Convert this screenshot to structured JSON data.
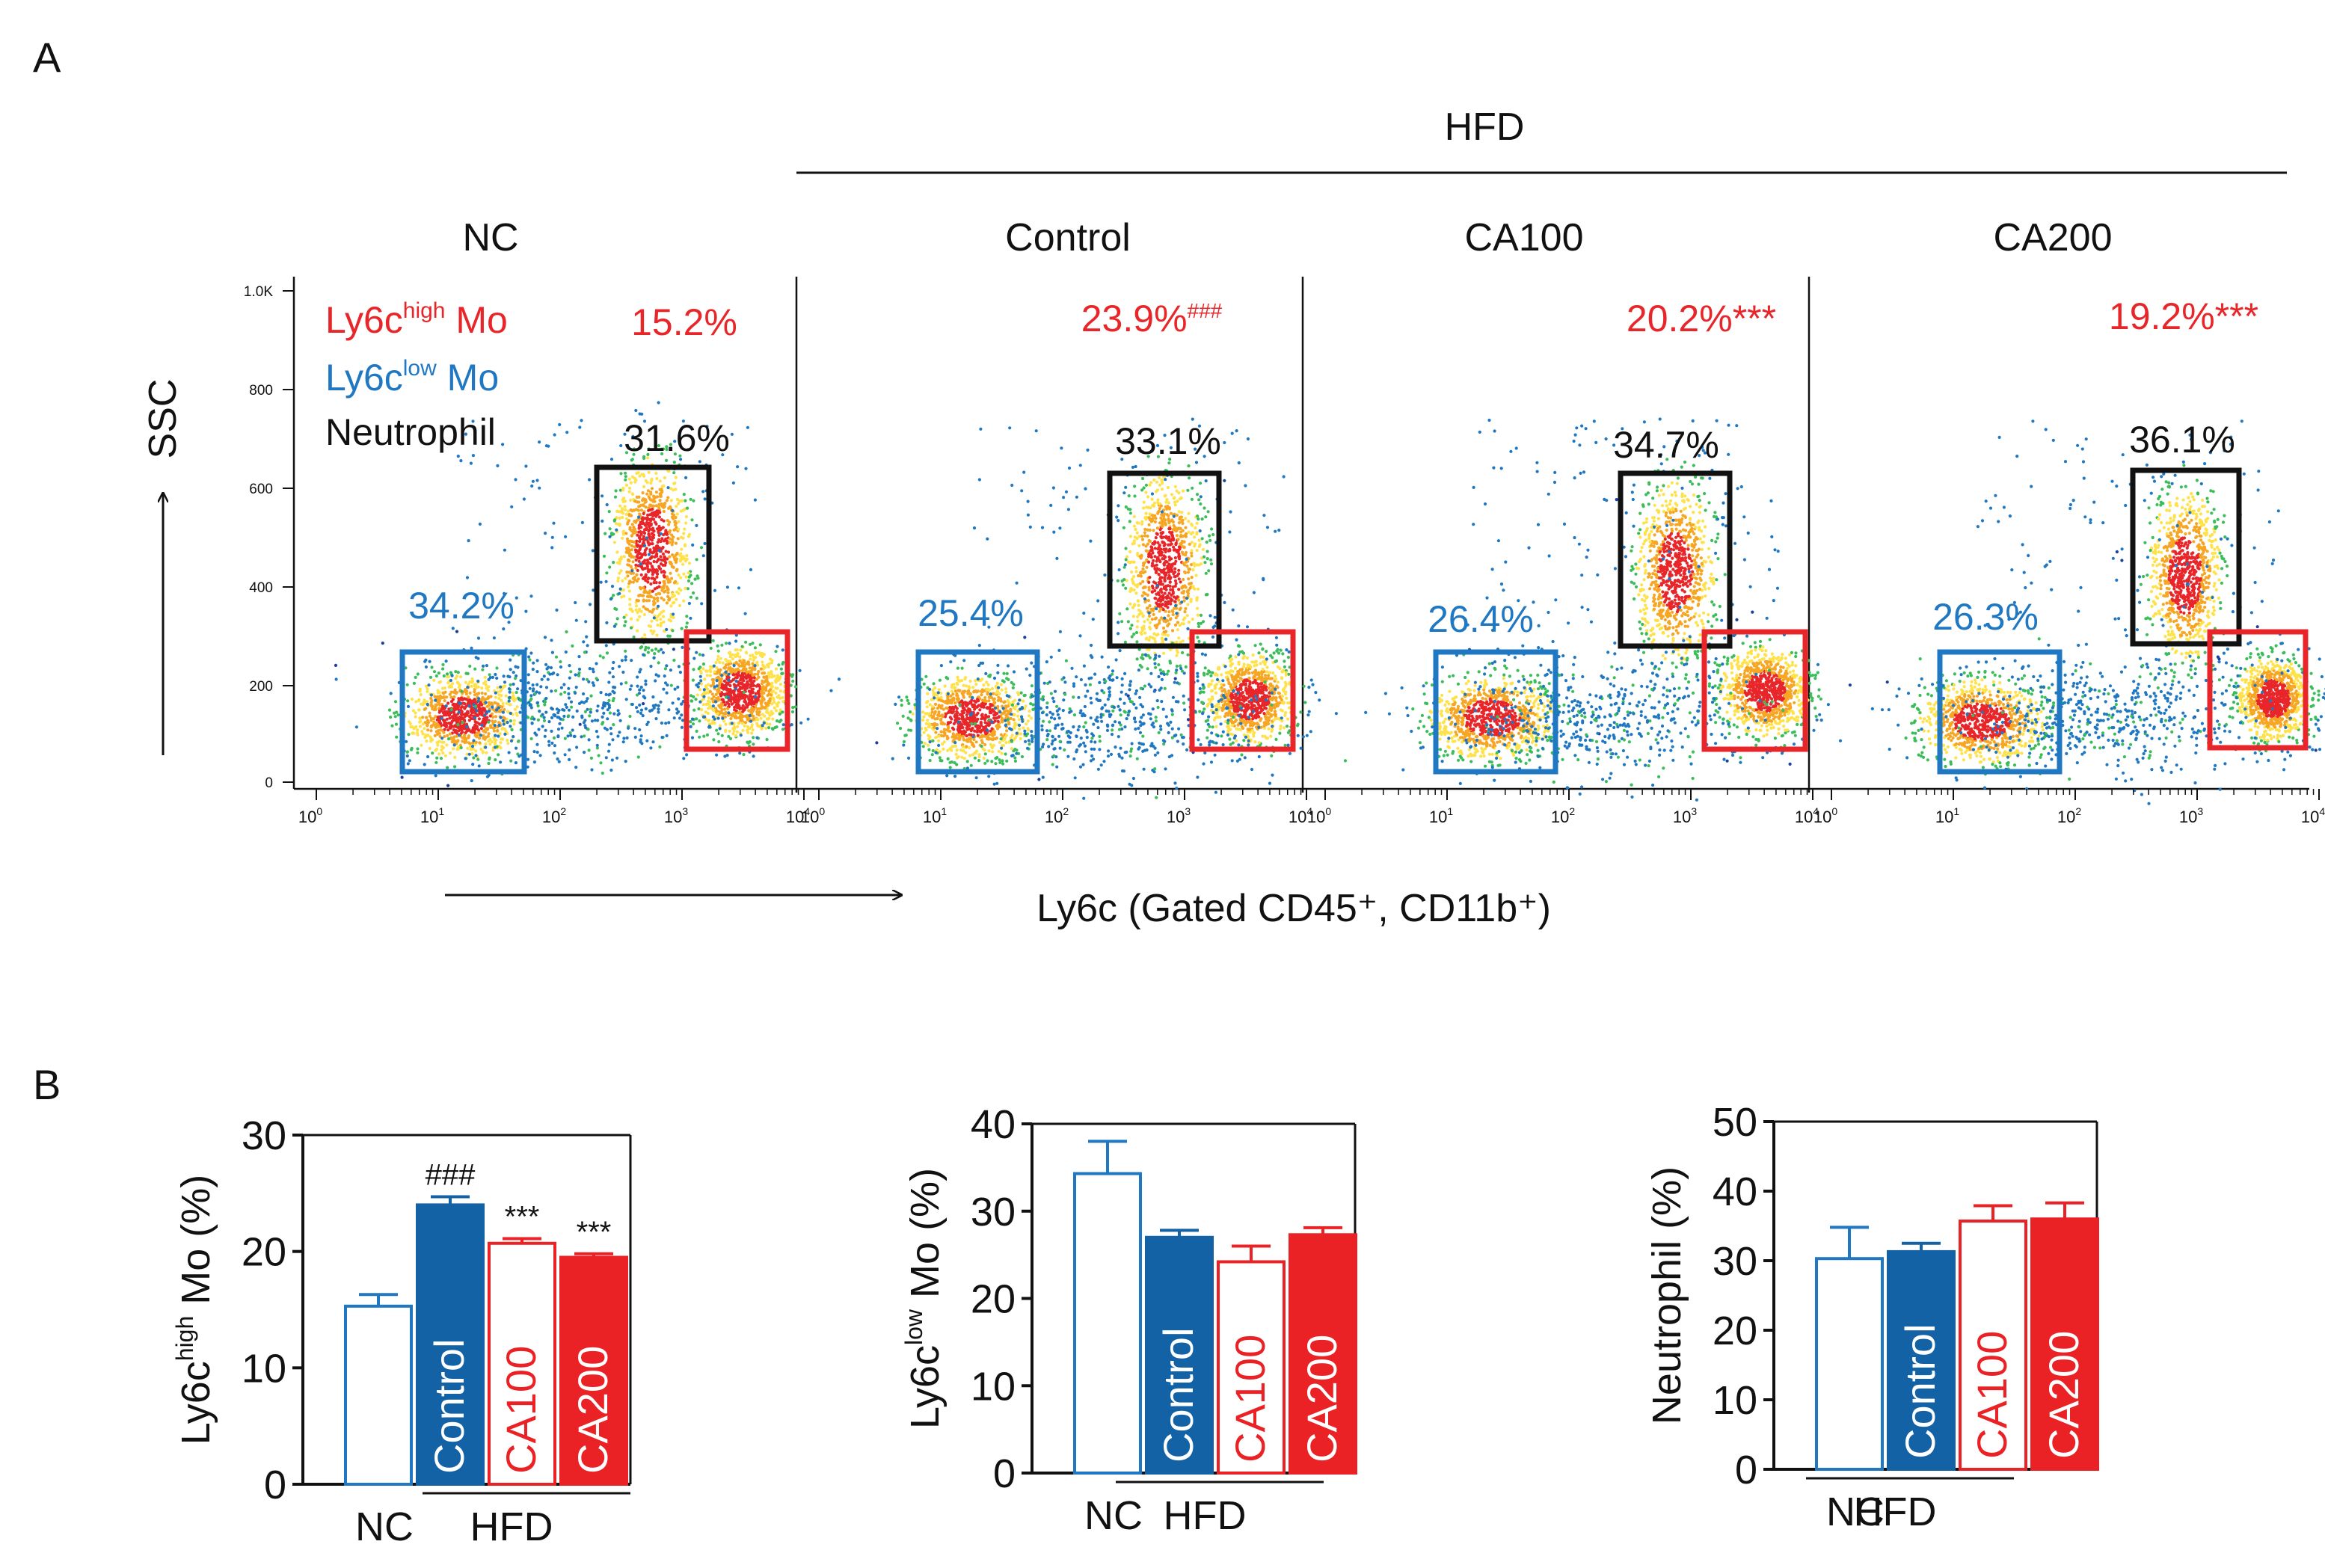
{
  "figure": {
    "panel_a_label": "A",
    "panel_b_label": "B",
    "hfd_label": "HFD"
  },
  "panel_a": {
    "y_axis_label": "SSC",
    "x_axis_label": "Ly6c (Gated CD45⁺, CD11b⁺)",
    "y_ticks": [
      "1.0K",
      "800",
      "600",
      "400",
      "200",
      "0"
    ],
    "y_tick_values": [
      1000,
      800,
      600,
      400,
      200,
      0
    ],
    "x_tick_exponents": [
      "0",
      "1",
      "2",
      "3",
      "4"
    ],
    "x_tick_base": "10",
    "legend": {
      "high_main": "Ly6c",
      "high_sup": "high",
      "high_suffix": " Mo",
      "low_main": "Ly6c",
      "low_sup": "low",
      "low_suffix": " Mo",
      "neutrophil": "Neutrophil"
    },
    "colors": {
      "high": "#e8262a",
      "low": "#1f78c1",
      "neutrophil": "#111111"
    },
    "plots": [
      {
        "title": "NC",
        "high_pct": "15.2%",
        "high_mark": "",
        "neut_pct": "31.6%",
        "low_pct": "34.2%"
      },
      {
        "title": "Control",
        "high_pct": "23.9%",
        "high_mark": "###",
        "neut_pct": "33.1%",
        "low_pct": "25.4%"
      },
      {
        "title": "CA100",
        "high_pct": "20.2%",
        "high_mark": "***",
        "neut_pct": "34.7%",
        "low_pct": "26.4%"
      },
      {
        "title": "CA200",
        "high_pct": "19.2%",
        "high_mark": "***",
        "neut_pct": "36.1%",
        "low_pct": "26.3%"
      }
    ]
  },
  "chart_data": [
    {
      "type": "bar",
      "title": "",
      "ylabel_main": "Ly6c",
      "ylabel_sup": "high",
      "ylabel_suffix": " Mo (%)",
      "ylim": [
        0,
        30
      ],
      "yticks": [
        0,
        10,
        20,
        30
      ],
      "categories": [
        "NC",
        "Control",
        "CA100",
        "CA200"
      ],
      "values": [
        15.3,
        24.0,
        20.7,
        19.5
      ],
      "errors": [
        1.0,
        0.7,
        0.4,
        0.3
      ],
      "annotations": [
        "",
        "###",
        "***",
        "***"
      ],
      "group_labels": {
        "nc": "NC",
        "hfd": "HFD"
      }
    },
    {
      "type": "bar",
      "title": "",
      "ylabel_main": "Ly6c",
      "ylabel_sup": "low",
      "ylabel_suffix": " Mo (%)",
      "ylim": [
        0,
        40
      ],
      "yticks": [
        0,
        10,
        20,
        30,
        40
      ],
      "categories": [
        "NC",
        "Control",
        "CA100",
        "CA200"
      ],
      "values": [
        34.3,
        27.0,
        24.2,
        27.3
      ],
      "errors": [
        3.7,
        0.8,
        1.8,
        0.8
      ],
      "annotations": [
        "",
        "",
        "",
        ""
      ],
      "group_labels": {
        "nc": "NC",
        "hfd": "HFD"
      }
    },
    {
      "type": "bar",
      "title": "",
      "ylabel_main": "Neutrophil (%)",
      "ylabel_sup": "",
      "ylabel_suffix": "",
      "ylim": [
        0,
        50
      ],
      "yticks": [
        0,
        10,
        20,
        30,
        40,
        50
      ],
      "categories": [
        "NC",
        "Control",
        "CA100",
        "CA200"
      ],
      "values": [
        30.3,
        31.3,
        35.7,
        36.0
      ],
      "errors": [
        4.5,
        1.2,
        2.2,
        2.3
      ],
      "annotations": [
        "",
        "",
        "",
        ""
      ],
      "group_labels": {
        "nc": "NC",
        "hfd": "HFD"
      }
    }
  ]
}
